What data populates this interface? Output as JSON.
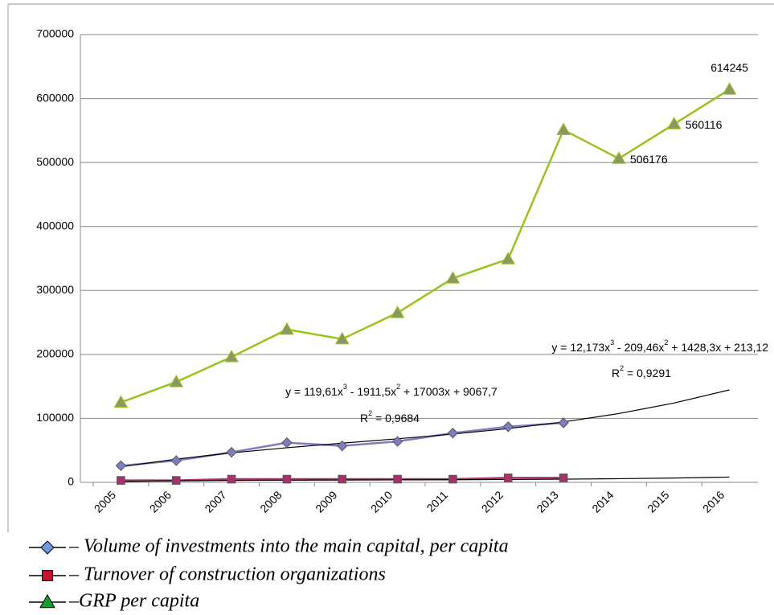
{
  "chart_data": {
    "type": "line",
    "categories": [
      "2005",
      "2006",
      "2007",
      "2008",
      "2009",
      "2010",
      "2011",
      "2012",
      "2013",
      "2014",
      "2015",
      "2016"
    ],
    "ylim": [
      0,
      700000
    ],
    "yticks": [
      0,
      100000,
      200000,
      300000,
      400000,
      500000,
      600000,
      700000
    ],
    "grid": true,
    "series": [
      {
        "name": "– Volume of investments into the main capital, per capita",
        "color": "#7d7dc0",
        "marker": "diamond",
        "legend_color": "#6f9ae0",
        "values": [
          26000,
          34000,
          47000,
          62000,
          57000,
          64000,
          77000,
          87000,
          93000,
          null,
          null,
          null
        ]
      },
      {
        "name": "– Turnover of construction organizations",
        "color": "#a8306c",
        "marker": "square",
        "legend_color": "#cc1030",
        "values": [
          3000,
          3000,
          5000,
          5000,
          5000,
          5000,
          5000,
          7000,
          7000,
          null,
          null,
          null
        ]
      },
      {
        "name": "–GRP per capita",
        "color": "#99c31c",
        "marker": "triangle",
        "legend_color": "#10a030",
        "values": [
          125000,
          157000,
          196000,
          239000,
          224000,
          265000,
          319000,
          349000,
          551000,
          506176,
          560116,
          614245
        ],
        "value_labels": [
          null,
          null,
          null,
          null,
          null,
          null,
          null,
          null,
          null,
          "506176",
          "560116",
          "614245"
        ]
      }
    ],
    "trendlines": [
      {
        "equation": [
          "y = 119,61x",
          "3",
          " - 1911,5x",
          "2",
          " + 17003x + 9067,7"
        ],
        "r2": [
          "R",
          "2",
          " = 0,9684"
        ],
        "values": [
          24279,
          36385,
          46103,
          54151,
          61246,
          68108,
          75451,
          83996,
          94459,
          107558,
          124010,
          144534
        ]
      },
      {
        "equation": [
          "y = 12,173x",
          "3",
          " - 209,46x",
          "2",
          " + 1428,3x + 213,12"
        ],
        "r2": [
          "R",
          "2",
          " = 0,9291"
        ],
        "values": [
          1444,
          2329,
          2942,
          3354,
          3640,
          3871,
          4122,
          4467,
          4976,
          5723,
          6781,
          8226
        ]
      }
    ]
  }
}
